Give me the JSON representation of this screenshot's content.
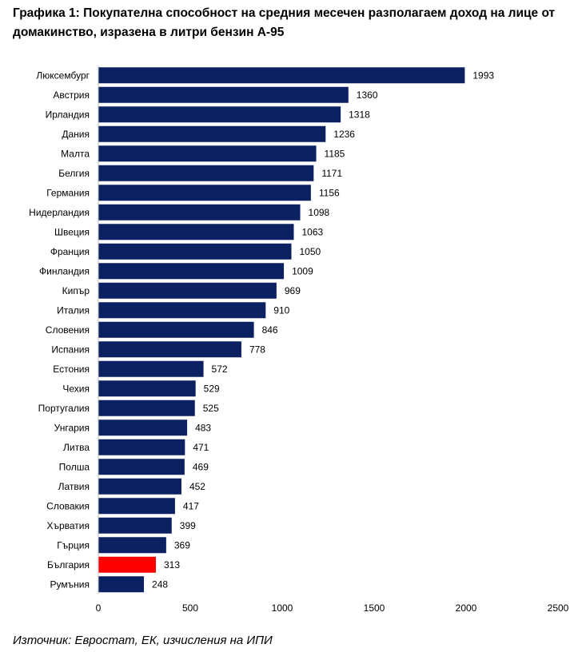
{
  "title": "Графика 1: Покупателна способност на средния месечен разполагаем доход на лице от домакинство, изразена в литри бензин А-95",
  "source": "Източник: Евростат, ЕК, изчисления на ИПИ",
  "colors": {
    "bar": "#0b2161",
    "highlight": "#ff0000",
    "axis": "#bfbfbf"
  },
  "chart_data": {
    "type": "bar",
    "orientation": "horizontal",
    "title": "Графика 1: Покупателна способност на средния месечен разполагаем доход на лице от домакинство, изразена в литри бензин А-95",
    "categories": [
      "Люксембург",
      "Австрия",
      "Ирландия",
      "Дания",
      "Малта",
      "Белгия",
      "Германия",
      "Нидерландия",
      "Швеция",
      "Франция",
      "Финландия",
      "Кипър",
      "Италия",
      "Словения",
      "Испания",
      "Естония",
      "Чехия",
      "Португалия",
      "Унгария",
      "Литва",
      "Полша",
      "Латвия",
      "Словакия",
      "Хърватия",
      "Гърция",
      "България",
      "Румъния"
    ],
    "values": [
      1993,
      1360,
      1318,
      1236,
      1185,
      1171,
      1156,
      1098,
      1063,
      1050,
      1009,
      969,
      910,
      846,
      778,
      572,
      529,
      525,
      483,
      471,
      469,
      452,
      417,
      399,
      369,
      313,
      248
    ],
    "highlight": "България",
    "xlim": [
      0,
      2500
    ],
    "xticks": [
      "0",
      "500",
      "1000",
      "1500",
      "2000",
      "2500"
    ],
    "data_labels": true,
    "grid": false,
    "legend": "none"
  }
}
